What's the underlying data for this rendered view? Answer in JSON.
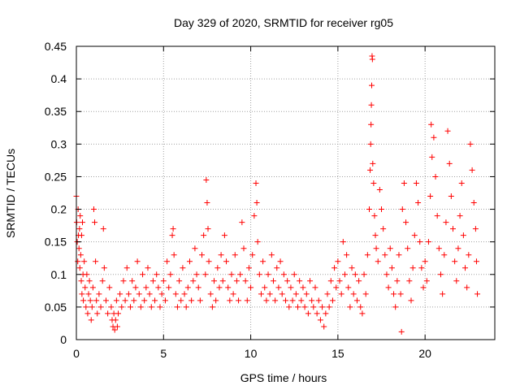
{
  "chart_data": {
    "type": "scatter",
    "title": "Day 329 of 2020, SRMTID for receiver rg05",
    "xlabel": "GPS time / hours",
    "ylabel": "SRMTID / TECUs",
    "xlim": [
      0,
      24
    ],
    "ylim": [
      0,
      0.45
    ],
    "x_ticks": [
      0,
      5,
      10,
      15,
      20
    ],
    "x_tick_labels": [
      "0",
      "5",
      "10",
      "15",
      "20"
    ],
    "y_ticks": [
      0,
      0.05,
      0.1,
      0.15,
      0.2,
      0.25,
      0.3,
      0.35,
      0.4,
      0.45
    ],
    "y_tick_labels": [
      "0",
      "0.05",
      "0.1",
      "0.15",
      "0.2",
      "0.25",
      "0.3",
      "0.35",
      "0.4",
      "0.45"
    ],
    "grid": true,
    "marker": "+",
    "color": "#ff0000",
    "series": [
      {
        "name": "rg05",
        "points": [
          [
            0.0,
            0.22
          ],
          [
            0.02,
            0.18
          ],
          [
            0.05,
            0.15
          ],
          [
            0.08,
            0.12
          ],
          [
            0.1,
            0.2
          ],
          [
            0.12,
            0.16
          ],
          [
            0.15,
            0.14
          ],
          [
            0.18,
            0.17
          ],
          [
            0.2,
            0.11
          ],
          [
            0.22,
            0.19
          ],
          [
            0.25,
            0.13
          ],
          [
            0.28,
            0.09
          ],
          [
            0.3,
            0.16
          ],
          [
            0.32,
            0.07
          ],
          [
            0.35,
            0.18
          ],
          [
            0.38,
            0.1
          ],
          [
            0.4,
            0.06
          ],
          [
            0.45,
            0.12
          ],
          [
            0.5,
            0.08
          ],
          [
            0.55,
            0.05
          ],
          [
            0.6,
            0.1
          ],
          [
            0.65,
            0.04
          ],
          [
            0.7,
            0.07
          ],
          [
            0.75,
            0.09
          ],
          [
            0.8,
            0.06
          ],
          [
            0.85,
            0.03
          ],
          [
            0.9,
            0.05
          ],
          [
            0.95,
            0.08
          ],
          [
            1.0,
            0.2
          ],
          [
            1.05,
            0.18
          ],
          [
            1.1,
            0.12
          ],
          [
            1.15,
            0.06
          ],
          [
            1.2,
            0.04
          ],
          [
            1.3,
            0.07
          ],
          [
            1.4,
            0.05
          ],
          [
            1.5,
            0.09
          ],
          [
            1.55,
            0.17
          ],
          [
            1.6,
            0.11
          ],
          [
            1.7,
            0.06
          ],
          [
            1.8,
            0.04
          ],
          [
            1.9,
            0.08
          ],
          [
            2.0,
            0.05
          ],
          [
            2.05,
            0.03
          ],
          [
            2.1,
            0.02
          ],
          [
            2.15,
            0.04
          ],
          [
            2.2,
            0.015
          ],
          [
            2.25,
            0.03
          ],
          [
            2.3,
            0.06
          ],
          [
            2.35,
            0.02
          ],
          [
            2.4,
            0.04
          ],
          [
            2.5,
            0.07
          ],
          [
            2.6,
            0.05
          ],
          [
            2.7,
            0.09
          ],
          [
            2.8,
            0.06
          ],
          [
            2.9,
            0.11
          ],
          [
            3.0,
            0.07
          ],
          [
            3.1,
            0.05
          ],
          [
            3.2,
            0.09
          ],
          [
            3.3,
            0.06
          ],
          [
            3.4,
            0.08
          ],
          [
            3.5,
            0.12
          ],
          [
            3.6,
            0.07
          ],
          [
            3.7,
            0.05
          ],
          [
            3.8,
            0.1
          ],
          [
            3.9,
            0.06
          ],
          [
            4.0,
            0.08
          ],
          [
            4.1,
            0.11
          ],
          [
            4.2,
            0.07
          ],
          [
            4.3,
            0.05
          ],
          [
            4.4,
            0.09
          ],
          [
            4.5,
            0.06
          ],
          [
            4.6,
            0.1
          ],
          [
            4.7,
            0.08
          ],
          [
            4.8,
            0.05
          ],
          [
            4.9,
            0.07
          ],
          [
            5.0,
            0.09
          ],
          [
            5.1,
            0.06
          ],
          [
            5.2,
            0.12
          ],
          [
            5.3,
            0.08
          ],
          [
            5.4,
            0.1
          ],
          [
            5.5,
            0.16
          ],
          [
            5.55,
            0.17
          ],
          [
            5.6,
            0.13
          ],
          [
            5.7,
            0.07
          ],
          [
            5.8,
            0.05
          ],
          [
            5.9,
            0.09
          ],
          [
            6.0,
            0.06
          ],
          [
            6.1,
            0.11
          ],
          [
            6.2,
            0.07
          ],
          [
            6.3,
            0.05
          ],
          [
            6.4,
            0.08
          ],
          [
            6.5,
            0.12
          ],
          [
            6.6,
            0.06
          ],
          [
            6.7,
            0.09
          ],
          [
            6.8,
            0.14
          ],
          [
            6.9,
            0.1
          ],
          [
            7.0,
            0.08
          ],
          [
            7.1,
            0.06
          ],
          [
            7.2,
            0.13
          ],
          [
            7.3,
            0.16
          ],
          [
            7.4,
            0.1
          ],
          [
            7.45,
            0.245
          ],
          [
            7.5,
            0.21
          ],
          [
            7.55,
            0.17
          ],
          [
            7.6,
            0.12
          ],
          [
            7.7,
            0.07
          ],
          [
            7.8,
            0.05
          ],
          [
            7.9,
            0.09
          ],
          [
            8.0,
            0.06
          ],
          [
            8.1,
            0.11
          ],
          [
            8.2,
            0.08
          ],
          [
            8.3,
            0.13
          ],
          [
            8.4,
            0.09
          ],
          [
            8.5,
            0.16
          ],
          [
            8.6,
            0.12
          ],
          [
            8.7,
            0.08
          ],
          [
            8.8,
            0.06
          ],
          [
            8.9,
            0.1
          ],
          [
            9.0,
            0.07
          ],
          [
            9.1,
            0.13
          ],
          [
            9.2,
            0.09
          ],
          [
            9.3,
            0.06
          ],
          [
            9.4,
            0.1
          ],
          [
            9.5,
            0.18
          ],
          [
            9.6,
            0.14
          ],
          [
            9.7,
            0.09
          ],
          [
            9.8,
            0.06
          ],
          [
            9.9,
            0.11
          ],
          [
            10.0,
            0.08
          ],
          [
            10.1,
            0.13
          ],
          [
            10.2,
            0.19
          ],
          [
            10.3,
            0.24
          ],
          [
            10.35,
            0.21
          ],
          [
            10.4,
            0.15
          ],
          [
            10.5,
            0.1
          ],
          [
            10.6,
            0.07
          ],
          [
            10.7,
            0.12
          ],
          [
            10.8,
            0.08
          ],
          [
            10.9,
            0.06
          ],
          [
            11.0,
            0.1
          ],
          [
            11.1,
            0.07
          ],
          [
            11.2,
            0.13
          ],
          [
            11.3,
            0.09
          ],
          [
            11.4,
            0.06
          ],
          [
            11.5,
            0.11
          ],
          [
            11.6,
            0.08
          ],
          [
            11.7,
            0.12
          ],
          [
            11.8,
            0.07
          ],
          [
            11.9,
            0.1
          ],
          [
            12.0,
            0.06
          ],
          [
            12.1,
            0.09
          ],
          [
            12.2,
            0.05
          ],
          [
            12.3,
            0.08
          ],
          [
            12.4,
            0.06
          ],
          [
            12.5,
            0.1
          ],
          [
            12.6,
            0.07
          ],
          [
            12.7,
            0.05
          ],
          [
            12.8,
            0.09
          ],
          [
            12.9,
            0.06
          ],
          [
            13.0,
            0.08
          ],
          [
            13.1,
            0.05
          ],
          [
            13.2,
            0.07
          ],
          [
            13.3,
            0.04
          ],
          [
            13.4,
            0.09
          ],
          [
            13.5,
            0.06
          ],
          [
            13.6,
            0.05
          ],
          [
            13.7,
            0.08
          ],
          [
            13.8,
            0.04
          ],
          [
            13.9,
            0.06
          ],
          [
            14.0,
            0.03
          ],
          [
            14.1,
            0.05
          ],
          [
            14.2,
            0.02
          ],
          [
            14.3,
            0.04
          ],
          [
            14.4,
            0.07
          ],
          [
            14.5,
            0.05
          ],
          [
            14.6,
            0.09
          ],
          [
            14.7,
            0.06
          ],
          [
            14.8,
            0.11
          ],
          [
            14.9,
            0.08
          ],
          [
            15.0,
            0.12
          ],
          [
            15.1,
            0.09
          ],
          [
            15.2,
            0.07
          ],
          [
            15.3,
            0.15
          ],
          [
            15.4,
            0.1
          ],
          [
            15.5,
            0.13
          ],
          [
            15.6,
            0.08
          ],
          [
            15.7,
            0.05
          ],
          [
            15.8,
            0.11
          ],
          [
            15.9,
            0.07
          ],
          [
            16.0,
            0.1
          ],
          [
            16.1,
            0.06
          ],
          [
            16.2,
            0.09
          ],
          [
            16.3,
            0.05
          ],
          [
            16.4,
            0.04
          ],
          [
            16.5,
            0.1
          ],
          [
            16.6,
            0.07
          ],
          [
            16.7,
            0.13
          ],
          [
            16.8,
            0.2
          ],
          [
            16.85,
            0.26
          ],
          [
            16.88,
            0.3
          ],
          [
            16.9,
            0.33
          ],
          [
            16.92,
            0.36
          ],
          [
            16.94,
            0.39
          ],
          [
            16.96,
            0.435
          ],
          [
            16.98,
            0.43
          ],
          [
            17.0,
            0.27
          ],
          [
            17.05,
            0.24
          ],
          [
            17.1,
            0.19
          ],
          [
            17.15,
            0.16
          ],
          [
            17.2,
            0.14
          ],
          [
            17.3,
            0.12
          ],
          [
            17.4,
            0.23
          ],
          [
            17.5,
            0.2
          ],
          [
            17.6,
            0.17
          ],
          [
            17.7,
            0.13
          ],
          [
            17.8,
            0.1
          ],
          [
            17.9,
            0.08
          ],
          [
            18.0,
            0.14
          ],
          [
            18.1,
            0.11
          ],
          [
            18.2,
            0.07
          ],
          [
            18.3,
            0.05
          ],
          [
            18.4,
            0.09
          ],
          [
            18.5,
            0.13
          ],
          [
            18.6,
            0.07
          ],
          [
            18.65,
            0.012
          ],
          [
            18.7,
            0.2
          ],
          [
            18.8,
            0.24
          ],
          [
            18.9,
            0.18
          ],
          [
            19.0,
            0.14
          ],
          [
            19.1,
            0.09
          ],
          [
            19.2,
            0.06
          ],
          [
            19.3,
            0.11
          ],
          [
            19.4,
            0.16
          ],
          [
            19.5,
            0.24
          ],
          [
            19.6,
            0.21
          ],
          [
            19.7,
            0.15
          ],
          [
            19.8,
            0.11
          ],
          [
            19.9,
            0.08
          ],
          [
            20.0,
            0.12
          ],
          [
            20.1,
            0.09
          ],
          [
            20.2,
            0.15
          ],
          [
            20.3,
            0.22
          ],
          [
            20.35,
            0.33
          ],
          [
            20.4,
            0.28
          ],
          [
            20.5,
            0.31
          ],
          [
            20.6,
            0.25
          ],
          [
            20.7,
            0.19
          ],
          [
            20.8,
            0.14
          ],
          [
            20.9,
            0.1
          ],
          [
            21.0,
            0.07
          ],
          [
            21.1,
            0.13
          ],
          [
            21.2,
            0.18
          ],
          [
            21.3,
            0.32
          ],
          [
            21.4,
            0.27
          ],
          [
            21.5,
            0.22
          ],
          [
            21.6,
            0.17
          ],
          [
            21.7,
            0.12
          ],
          [
            21.8,
            0.09
          ],
          [
            21.9,
            0.14
          ],
          [
            22.0,
            0.19
          ],
          [
            22.1,
            0.24
          ],
          [
            22.2,
            0.16
          ],
          [
            22.3,
            0.11
          ],
          [
            22.4,
            0.08
          ],
          [
            22.5,
            0.13
          ],
          [
            22.6,
            0.3
          ],
          [
            22.7,
            0.26
          ],
          [
            22.8,
            0.21
          ],
          [
            22.9,
            0.17
          ],
          [
            22.95,
            0.12
          ],
          [
            23.0,
            0.07
          ]
        ]
      }
    ]
  }
}
